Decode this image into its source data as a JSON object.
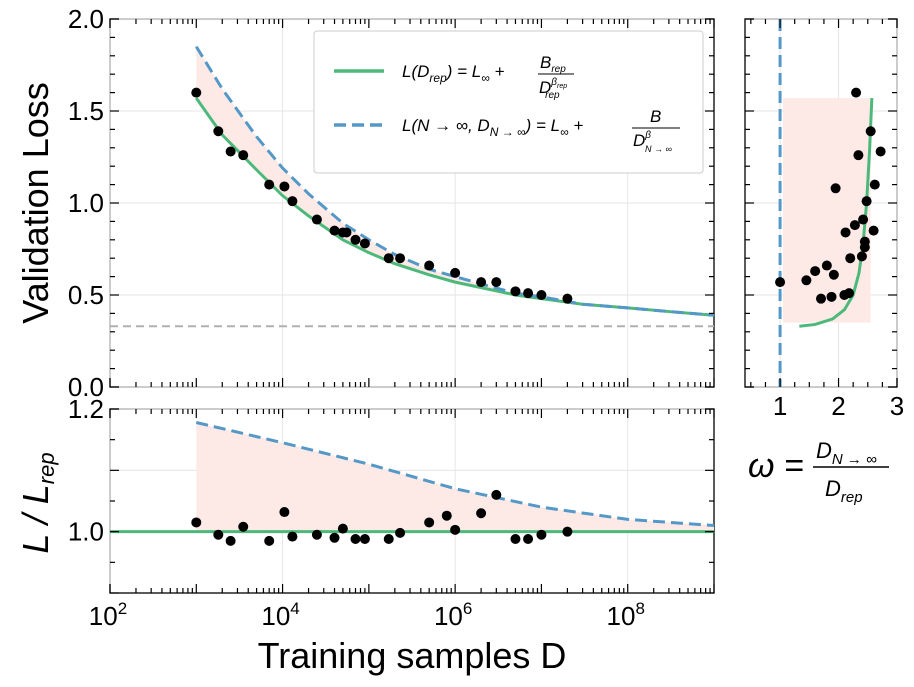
{
  "chart_data": [
    {
      "panel": "main",
      "type": "scatter",
      "title": "",
      "xlabel": "Training samples D",
      "ylabel": "Validation Loss",
      "xscale": "log",
      "xlim": [
        100,
        1000000000
      ],
      "ylim": [
        0,
        2.0
      ],
      "x_tick_labels": [
        "10^2",
        "10^4",
        "10^6",
        "10^8"
      ],
      "y_ticks": [
        0.0,
        0.5,
        1.0,
        1.5,
        2.0
      ],
      "y_tick_labels": [
        "0.0",
        "0.5",
        "1.0",
        "1.5",
        "2.0"
      ],
      "legend_position": "top-right",
      "asymptote": {
        "name": "L_inf",
        "y": 0.33,
        "style": "gray dashed"
      },
      "shaded_region": "between L(D_rep) and L(N→∞, D_N→∞)",
      "series": [
        {
          "name": "observed",
          "kind": "points",
          "color": "#000000",
          "x": [
            1000,
            1800,
            2500,
            3500,
            7000,
            10500,
            13000,
            25000,
            40000,
            50000,
            55000,
            70000,
            90000,
            170000,
            230000,
            500000,
            1000000,
            2000000,
            3000000,
            5000000,
            7000000,
            10000000,
            20000000
          ],
          "y": [
            1.6,
            1.39,
            1.28,
            1.26,
            1.1,
            1.09,
            1.01,
            0.91,
            0.85,
            0.84,
            0.84,
            0.8,
            0.78,
            0.7,
            0.7,
            0.66,
            0.62,
            0.57,
            0.57,
            0.52,
            0.51,
            0.5,
            0.48
          ]
        },
        {
          "name": "L(D_rep) = L∞ + B_rep / D_rep^β_rep",
          "kind": "line",
          "color": "#4cb97a",
          "style": "solid",
          "x": [
            1000,
            2000,
            5000,
            10000,
            20000,
            50000,
            100000,
            200000,
            500000,
            1000000,
            2000000,
            5000000,
            10000000,
            30000000,
            100000000,
            300000000,
            1000000000
          ],
          "y": [
            1.57,
            1.37,
            1.18,
            1.04,
            0.93,
            0.8,
            0.73,
            0.67,
            0.61,
            0.57,
            0.54,
            0.5,
            0.48,
            0.45,
            0.43,
            0.41,
            0.39
          ]
        },
        {
          "name": "L(N → ∞, D_N→∞) = L∞ + B / D_N→∞^β",
          "kind": "line",
          "color": "#5498c8",
          "style": "dashed",
          "x": [
            1000,
            2000,
            5000,
            10000,
            20000,
            50000,
            100000,
            200000,
            500000,
            1000000,
            2000000,
            5000000,
            10000000,
            30000000,
            100000000,
            300000000,
            1000000000
          ],
          "y": [
            1.85,
            1.62,
            1.36,
            1.19,
            1.05,
            0.89,
            0.8,
            0.72,
            0.64,
            0.6,
            0.56,
            0.51,
            0.49,
            0.45,
            0.43,
            0.41,
            0.39
          ]
        }
      ],
      "legend": [
        {
          "main": "L(D",
          "sub": "rep",
          "rhs": ") = L",
          "inf": "∞",
          "plus": " + ",
          "num": "B",
          "num_sub": "rep",
          "den": "D",
          "den_sup": "β",
          "den_sup_sub": "rep",
          "den_sub": "rep"
        },
        {
          "main": "L(N → ∞, D",
          "sub": "N → ∞",
          "rhs": ") = L",
          "inf": "∞",
          "plus": " + ",
          "num": "B",
          "num_sub": "",
          "den": "D",
          "den_sup": "β",
          "den_sup_sub": "",
          "den_sub": "N → ∞"
        }
      ]
    },
    {
      "panel": "ratio",
      "type": "scatter",
      "xlabel": "Training samples D",
      "ylabel": "L / L_rep",
      "xscale": "log",
      "xlim": [
        100,
        1000000000
      ],
      "ylim": [
        0.9,
        1.2
      ],
      "y_ticks": [
        1.0,
        1.2
      ],
      "y_tick_labels": [
        "1.0",
        "1.2"
      ],
      "series": [
        {
          "name": "observed ratio",
          "kind": "points",
          "color": "#000000",
          "x": [
            1000,
            1800,
            2500,
            3500,
            7000,
            10500,
            13000,
            25000,
            40000,
            50000,
            70000,
            90000,
            170000,
            230000,
            500000,
            800000,
            1000000,
            2000000,
            3000000,
            5000000,
            7000000,
            10000000,
            20000000
          ],
          "y": [
            1.015,
            0.995,
            0.985,
            1.008,
            0.985,
            1.032,
            0.992,
            0.995,
            0.99,
            1.005,
            0.988,
            0.988,
            0.988,
            0.998,
            1.015,
            1.026,
            1.003,
            1.03,
            1.06,
            0.988,
            0.988,
            0.995,
            1.0
          ]
        },
        {
          "name": "L_rep reference",
          "kind": "line",
          "color": "#4cb97a",
          "style": "solid",
          "x": [
            100,
            1000000000
          ],
          "y": [
            1.0,
            1.0
          ]
        },
        {
          "name": "L(N→∞) / L_rep",
          "kind": "line",
          "color": "#5498c8",
          "style": "dashed",
          "x": [
            1000,
            10000,
            100000,
            1000000,
            10000000,
            100000000,
            1000000000
          ],
          "y": [
            1.178,
            1.145,
            1.11,
            1.07,
            1.04,
            1.02,
            1.01
          ]
        }
      ]
    },
    {
      "panel": "omega",
      "type": "scatter",
      "xlabel": "ω = D_N→∞ / D_rep",
      "ylabel": "",
      "xlim": [
        0.4,
        3.0
      ],
      "ylim": [
        0,
        2.0
      ],
      "x_ticks": [
        1,
        2,
        3
      ],
      "x_tick_labels": [
        "1",
        "2",
        "3"
      ],
      "reference_line": {
        "x": 1.0,
        "color": "#5498c8",
        "style": "dashed"
      },
      "series": [
        {
          "name": "observed omega",
          "kind": "points",
          "color": "#000000",
          "x": [
            1.0,
            1.45,
            1.6,
            1.7,
            1.8,
            1.88,
            1.92,
            1.95,
            2.1,
            2.12,
            2.18,
            2.2,
            2.28,
            2.3,
            2.34,
            2.4,
            2.42,
            2.45,
            2.45,
            2.48,
            2.55,
            2.62,
            2.72,
            2.6
          ],
          "y": [
            0.57,
            0.58,
            0.63,
            0.48,
            0.66,
            0.49,
            0.61,
            1.08,
            0.5,
            0.84,
            0.51,
            0.7,
            0.88,
            1.6,
            1.26,
            0.71,
            0.91,
            0.76,
            0.79,
            1.01,
            1.39,
            1.1,
            1.28,
            0.85
          ]
        },
        {
          "name": "omega curve",
          "kind": "line",
          "color": "#4cb97a",
          "style": "solid",
          "x": [
            1.33,
            1.6,
            1.9,
            2.1,
            2.25,
            2.35,
            2.42,
            2.48,
            2.53,
            2.57
          ],
          "y": [
            0.33,
            0.34,
            0.37,
            0.42,
            0.5,
            0.62,
            0.78,
            1.0,
            1.28,
            1.57
          ]
        }
      ]
    }
  ]
}
